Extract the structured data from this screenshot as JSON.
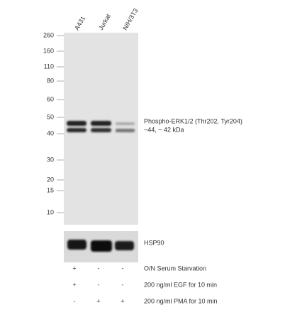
{
  "lanes": [
    "A431",
    "Jurkat",
    "NIH/3T3"
  ],
  "markers": [
    260,
    160,
    110,
    80,
    60,
    50,
    40,
    30,
    20,
    15,
    10
  ],
  "bands": {
    "target": "Phospho-ERK1/2 (Thr202, Tyr204)",
    "target_size": "~44, ~ 42 kDa",
    "loading_control": "HSP90"
  },
  "treatments": [
    {
      "label": "O/N Serum Starvation",
      "signs": [
        "+",
        "-",
        "-"
      ]
    },
    {
      "label": "200 ng/ml EGF for 10 min",
      "signs": [
        "+",
        "-",
        "-"
      ]
    },
    {
      "label": "200 ng/ml PMA for 10 min",
      "signs": [
        "-",
        "+",
        "+"
      ]
    }
  ]
}
